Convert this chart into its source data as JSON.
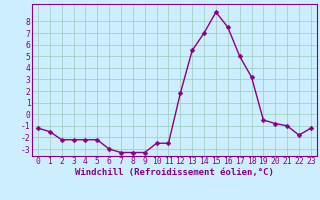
{
  "x": [
    0,
    1,
    2,
    3,
    4,
    5,
    6,
    7,
    8,
    9,
    10,
    11,
    12,
    13,
    14,
    15,
    16,
    17,
    18,
    19,
    20,
    21,
    22,
    23
  ],
  "y": [
    -1.2,
    -1.5,
    -2.2,
    -2.2,
    -2.2,
    -2.2,
    -3.0,
    -3.3,
    -3.3,
    -3.3,
    -2.5,
    -2.5,
    1.8,
    5.5,
    7.0,
    8.8,
    7.5,
    5.0,
    3.2,
    -0.5,
    -0.8,
    -1.0,
    -1.8,
    -1.2
  ],
  "xlabel": "Windchill (Refroidissement éolien,°C)",
  "xlim": [
    -0.5,
    23.5
  ],
  "ylim": [
    -3.6,
    9.5
  ],
  "yticks": [
    -3,
    -2,
    -1,
    0,
    1,
    2,
    3,
    4,
    5,
    6,
    7,
    8
  ],
  "xticks": [
    0,
    1,
    2,
    3,
    4,
    5,
    6,
    7,
    8,
    9,
    10,
    11,
    12,
    13,
    14,
    15,
    16,
    17,
    18,
    19,
    20,
    21,
    22,
    23
  ],
  "line_color": "#880088",
  "marker_color": "#880088",
  "bg_color": "#cceeff",
  "grid_color": "#99ccbb",
  "xlabel_fontsize": 6.5,
  "tick_fontsize": 5.8,
  "line_width": 1.0,
  "marker_size": 2.5,
  "spine_color": "#880088"
}
